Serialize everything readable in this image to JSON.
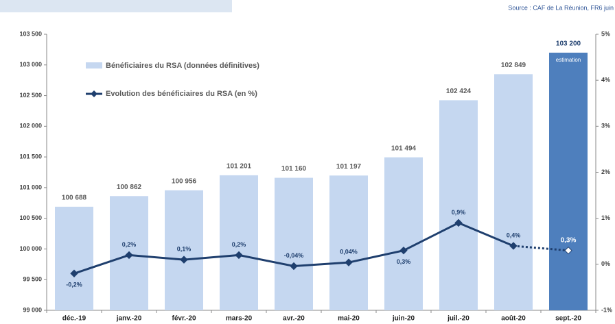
{
  "chart_data": {
    "type": "bar_line",
    "source": "Source : CAF de La Réunion, FR6 juin",
    "categories": [
      "déc.-19",
      "janv.-20",
      "févr.-20",
      "mars-20",
      "avr.-20",
      "mai-20",
      "juin-20",
      "juil.-20",
      "août-20",
      "sept.-20"
    ],
    "series": [
      {
        "name": "Bénéficiaires du RSA (données définitives)",
        "type": "bar",
        "colors": [
          "#c5d7f0",
          "#c5d7f0",
          "#c5d7f0",
          "#c5d7f0",
          "#c5d7f0",
          "#c5d7f0",
          "#c5d7f0",
          "#c5d7f0",
          "#c5d7f0",
          "#4e7fbd"
        ],
        "values": [
          100688,
          100862,
          100956,
          101201,
          101160,
          101197,
          101494,
          102424,
          102849,
          103200
        ],
        "value_labels": [
          "100 688",
          "100 862",
          "100 956",
          "101 201",
          "101 160",
          "101 197",
          "101 494",
          "102 424",
          "102 849",
          "103 200"
        ]
      },
      {
        "name": "Evolution des bénéficiaires du RSA (en %)",
        "type": "line",
        "axis": "y2",
        "color": "#1f3f6e",
        "values": [
          -0.2,
          0.2,
          0.1,
          0.2,
          -0.04,
          0.04,
          0.3,
          0.9,
          0.4,
          0.3
        ],
        "value_labels": [
          "-0,2%",
          "0,2%",
          "0,1%",
          "0,2%",
          "-0,04%",
          "0,04%",
          "0,3%",
          "0,9%",
          "0,4%",
          "0,3%"
        ],
        "dotted_from_index": 8
      }
    ],
    "annotation": "estimation",
    "ylim": [
      99000,
      103500
    ],
    "yticks": [
      {
        "value": 99000,
        "label": "99 000"
      },
      {
        "value": 99500,
        "label": "99 500"
      },
      {
        "value": 100000,
        "label": "100 000"
      },
      {
        "value": 100500,
        "label": "100 500"
      },
      {
        "value": 101000,
        "label": "101 000"
      },
      {
        "value": 101500,
        "label": "101 500"
      },
      {
        "value": 102000,
        "label": "102 000"
      },
      {
        "value": 102500,
        "label": "102 500"
      },
      {
        "value": 103000,
        "label": "103 000"
      },
      {
        "value": 103500,
        "label": "103 500"
      }
    ],
    "y2lim": [
      -1,
      5
    ],
    "y2ticks": [
      {
        "value": -1,
        "label": "-1%"
      },
      {
        "value": 0,
        "label": "0%"
      },
      {
        "value": 1,
        "label": "1%"
      },
      {
        "value": 2,
        "label": "2%"
      },
      {
        "value": 3,
        "label": "3%"
      },
      {
        "value": 4,
        "label": "4%"
      },
      {
        "value": 5,
        "label": "5%"
      }
    ]
  }
}
